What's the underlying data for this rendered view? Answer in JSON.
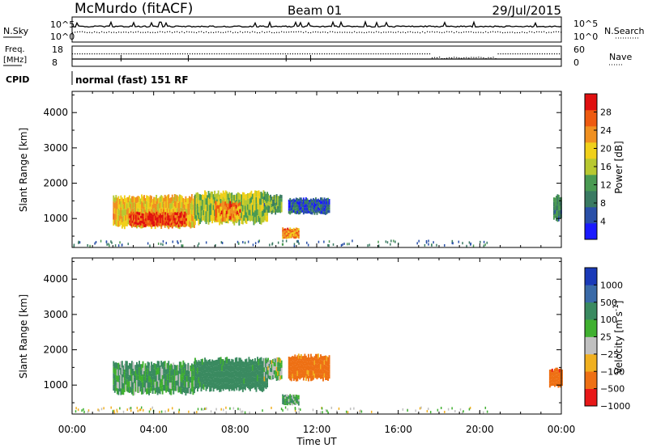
{
  "header": {
    "site": "McMurdo (fitACF)",
    "beam": "Beam 01",
    "date": "29/Jul/2015"
  },
  "aux_panels": {
    "nsky_label": "N.Sky",
    "nsky_ticks": [
      "10^5",
      "10^0"
    ],
    "nsky_right_ticks": [
      "10^5",
      "10^0"
    ],
    "nsearch_label": "N.Search",
    "freq_label_line1": "Freq.",
    "freq_label_line2": "[MHz]",
    "freq_ticks": [
      "18",
      "8"
    ],
    "nave_ticks": [
      "60",
      "0"
    ],
    "nave_label": "Nave",
    "cpid_label": "CPID",
    "cpid_value": "normal (fast) 151 RF"
  },
  "time_axis": {
    "title": "Time UT",
    "ticks": [
      "00:00",
      "04:00",
      "08:00",
      "12:00",
      "16:00",
      "20:00",
      "00:00"
    ]
  },
  "colors": {
    "power": [
      "#1a1aff",
      "#2a50a8",
      "#3a7a62",
      "#4a9a52",
      "#b8c830",
      "#f0d01a",
      "#f09020",
      "#ee5a10",
      "#e01010"
    ],
    "velocity": [
      "#e81818",
      "#ee7014",
      "#f0b020",
      "#c0c0c0",
      "#40b030",
      "#3a8a60",
      "#3a6aa8",
      "#1a3ab8"
    ]
  },
  "chart_data": [
    {
      "type": "heatmap",
      "name_in_figure": "Power",
      "ylabel": "Slant Range [km]",
      "xlabel": "Time UT",
      "ylim": [
        180,
        4600
      ],
      "xlim": [
        0,
        24
      ],
      "yticks": [
        1000,
        2000,
        3000,
        4000
      ],
      "ytick_labels": [
        "1000",
        "2000",
        "3000",
        "4000"
      ],
      "colorbar": {
        "label": "Power [dB]",
        "range": [
          0,
          32
        ],
        "tick_values": [
          4,
          8,
          12,
          16,
          20,
          24,
          28
        ],
        "tick_labels": [
          "4",
          "8",
          "12",
          "16",
          "20",
          "24",
          "28"
        ]
      },
      "regions": [
        {
          "t": [
            2.0,
            6.0
          ],
          "range": [
            700,
            1700
          ],
          "value": 20
        },
        {
          "t": [
            2.8,
            5.6
          ],
          "range": [
            750,
            1200
          ],
          "value": 28
        },
        {
          "t": [
            6.0,
            9.6
          ],
          "range": [
            800,
            1800
          ],
          "value": 16
        },
        {
          "t": [
            7.0,
            8.2
          ],
          "range": [
            900,
            1500
          ],
          "value": 24
        },
        {
          "t": [
            9.4,
            10.3
          ],
          "range": [
            1100,
            1700
          ],
          "value": 12
        },
        {
          "t": [
            10.3,
            11.1
          ],
          "range": [
            420,
            750
          ],
          "value": 24
        },
        {
          "t": [
            10.6,
            12.6
          ],
          "range": [
            1100,
            1600
          ],
          "value": 6
        },
        {
          "t": [
            23.6,
            24.0
          ],
          "range": [
            900,
            1700
          ],
          "value": 10
        }
      ]
    },
    {
      "type": "heatmap",
      "name_in_figure": "Velocity",
      "ylabel": "Slant Range [km]",
      "xlabel": "Time UT",
      "ylim": [
        180,
        4600
      ],
      "xlim": [
        0,
        24
      ],
      "yticks": [
        1000,
        2000,
        3000,
        4000
      ],
      "ytick_labels": [
        "1000",
        "2000",
        "3000",
        "4000"
      ],
      "colorbar": {
        "label": "Velocity [m s^-1]",
        "tick_labels": [
          "1000",
          "500",
          "100",
          "25",
          "−25",
          "−100",
          "−500",
          "−1000"
        ]
      },
      "regions": [
        {
          "t": [
            2.0,
            6.0
          ],
          "range": [
            700,
            1700
          ],
          "value": 100
        },
        {
          "t": [
            6.0,
            9.6
          ],
          "range": [
            800,
            1800
          ],
          "value": 200
        },
        {
          "t": [
            9.4,
            10.3
          ],
          "range": [
            1100,
            1800
          ],
          "value": 60
        },
        {
          "t": [
            10.3,
            11.1
          ],
          "range": [
            420,
            750
          ],
          "value": 80
        },
        {
          "t": [
            10.6,
            12.6
          ],
          "range": [
            1100,
            1900
          ],
          "value": -200
        },
        {
          "t": [
            23.4,
            24.0
          ],
          "range": [
            900,
            1500
          ],
          "value": -400
        }
      ]
    }
  ]
}
